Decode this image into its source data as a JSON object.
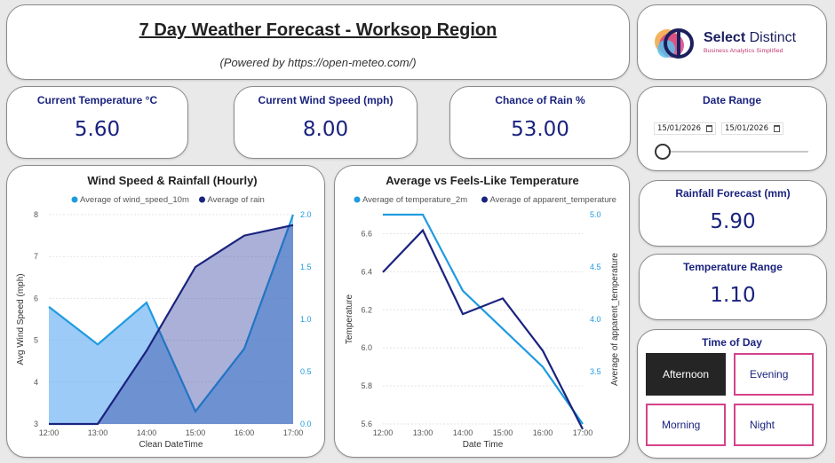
{
  "header": {
    "title": "7 Day Weather Forecast - Worksop Region",
    "subtitle": "(Powered by https://open-meteo.com/)"
  },
  "logo": {
    "brand_bold": "Select",
    "brand_rest": " Distinct",
    "tagline": "Business Analytics Simplified",
    "colors": [
      "#f2a541",
      "#d5428a",
      "#5bc0eb",
      "#1b1f5e"
    ]
  },
  "kpis": {
    "temp": {
      "label": "Current Temperature °C",
      "value": "5.60"
    },
    "wind": {
      "label": "Current Wind Speed (mph)",
      "value": "8.00"
    },
    "rain_chance": {
      "label": "Chance of Rain %",
      "value": "53.00"
    },
    "rain_forecast": {
      "label": "Rainfall Forecast (mm)",
      "value": "5.90"
    },
    "temp_range": {
      "label": "Temperature Range",
      "value": "1.10"
    }
  },
  "date_range": {
    "label": "Date Range",
    "start": "15/01/2026",
    "end": "15/01/2026",
    "slider_value": 0
  },
  "time_of_day": {
    "label": "Time of Day",
    "options": [
      "Afternoon",
      "Evening",
      "Morning",
      "Night"
    ],
    "selected": "Afternoon"
  },
  "chart_data": [
    {
      "type": "area",
      "title": "Wind Speed & Rainfall (Hourly)",
      "xlabel": "Clean DateTime",
      "ylabel": "Avg Wind Speed (mph)",
      "categories": [
        "12:00",
        "13:00",
        "14:00",
        "15:00",
        "16:00",
        "17:00"
      ],
      "ylim": [
        3,
        8
      ],
      "y_ticks": [
        "3",
        "4",
        "5",
        "6",
        "7",
        "8"
      ],
      "y2lim": [
        0,
        2
      ],
      "y2_ticks": [
        "0.0",
        "0.5",
        "1.0",
        "1.5",
        "2.0"
      ],
      "series": [
        {
          "name": "Average of wind_speed_10m",
          "axis": "left",
          "color": "#1f9be0",
          "values": [
            5.8,
            4.9,
            5.9,
            3.3,
            4.8,
            8.0
          ]
        },
        {
          "name": "Average of rain",
          "axis": "right",
          "color": "#1a237e",
          "values": [
            0.0,
            0.0,
            0.7,
            1.5,
            1.8,
            1.9
          ]
        }
      ]
    },
    {
      "type": "line",
      "title": "Average vs Feels-Like Temperature",
      "xlabel": "Date Time",
      "ylabel": "Temperature",
      "y2label": "Average of apparent_temperature",
      "categories": [
        "12:00",
        "13:00",
        "14:00",
        "15:00",
        "16:00",
        "17:00"
      ],
      "ylim": [
        5.6,
        6.7
      ],
      "y_ticks": [
        "5.6",
        "5.8",
        "6.0",
        "6.2",
        "6.4",
        "6.6"
      ],
      "y2lim": [
        3.0,
        5.0
      ],
      "y2_ticks": [
        "3.5",
        "4.0",
        "4.5",
        "5.0"
      ],
      "series": [
        {
          "name": "Average of temperature_2m",
          "axis": "left",
          "color": "#1f9be0",
          "values": [
            6.7,
            6.7,
            6.3,
            6.1,
            5.9,
            5.6
          ]
        },
        {
          "name": "Average of apparent_temperature",
          "axis": "right",
          "color": "#1a237e",
          "values": [
            4.45,
            4.85,
            4.05,
            4.2,
            3.7,
            2.95
          ]
        }
      ]
    }
  ]
}
